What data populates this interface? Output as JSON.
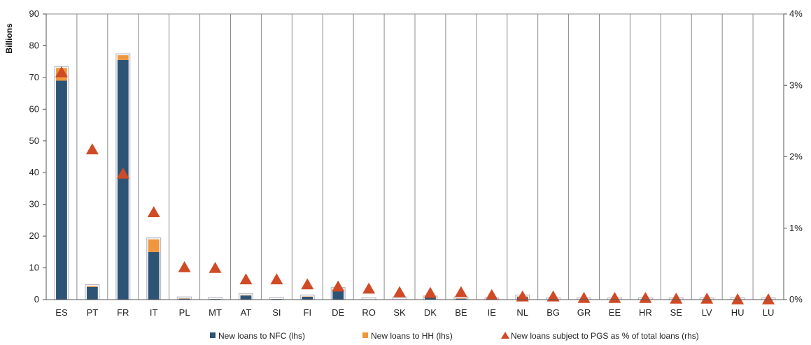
{
  "chart_data": {
    "type": "bar",
    "ylabel": "Billions",
    "ylim": [
      0,
      90
    ],
    "y_ticks": [
      "0",
      "10",
      "20",
      "30",
      "40",
      "50",
      "60",
      "70",
      "80",
      "90"
    ],
    "y2lim": [
      0,
      4
    ],
    "y2_ticks": [
      "0%",
      "1%",
      "2%",
      "3%",
      "4%"
    ],
    "grid": "vertical",
    "legend_position": "bottom",
    "categories": [
      "ES",
      "PT",
      "FR",
      "IT",
      "PL",
      "MT",
      "AT",
      "SI",
      "FI",
      "DE",
      "RO",
      "SK",
      "DK",
      "BE",
      "IE",
      "NL",
      "BG",
      "GR",
      "EE",
      "HR",
      "SE",
      "LV",
      "HU",
      "LU"
    ],
    "series": [
      {
        "name": "New loans to NFC (lhs)",
        "kind": "bar",
        "axis": "left",
        "color": "#2e5475",
        "values": [
          69,
          4,
          75.5,
          15,
          0.3,
          0.2,
          1.3,
          0.2,
          0.9,
          2.8,
          0.1,
          0.1,
          0.6,
          0.3,
          0.1,
          0.8,
          0.1,
          0.1,
          0.1,
          0.1,
          0.1,
          0.1,
          0.1,
          0.1
        ]
      },
      {
        "name": "New loans to HH (lhs)",
        "kind": "bar",
        "axis": "left",
        "color": "#f0963c",
        "values": [
          4,
          0.3,
          1.5,
          4,
          0.1,
          0,
          0.1,
          0,
          0.1,
          0.6,
          0,
          0,
          0.1,
          0.1,
          0,
          0.2,
          0,
          0,
          0,
          0,
          0,
          0,
          0,
          0
        ]
      },
      {
        "name": "New loans subject to PGS as % of total loans (rhs)",
        "kind": "marker",
        "axis": "right",
        "color": "#cf4a25",
        "values": [
          3.18,
          2.1,
          1.76,
          1.22,
          0.45,
          0.44,
          0.28,
          0.28,
          0.21,
          0.18,
          0.15,
          0.1,
          0.09,
          0.1,
          0.06,
          0.04,
          0.04,
          0.02,
          0.02,
          0.02,
          0.01,
          0.01,
          0.0,
          0.0
        ]
      }
    ]
  }
}
